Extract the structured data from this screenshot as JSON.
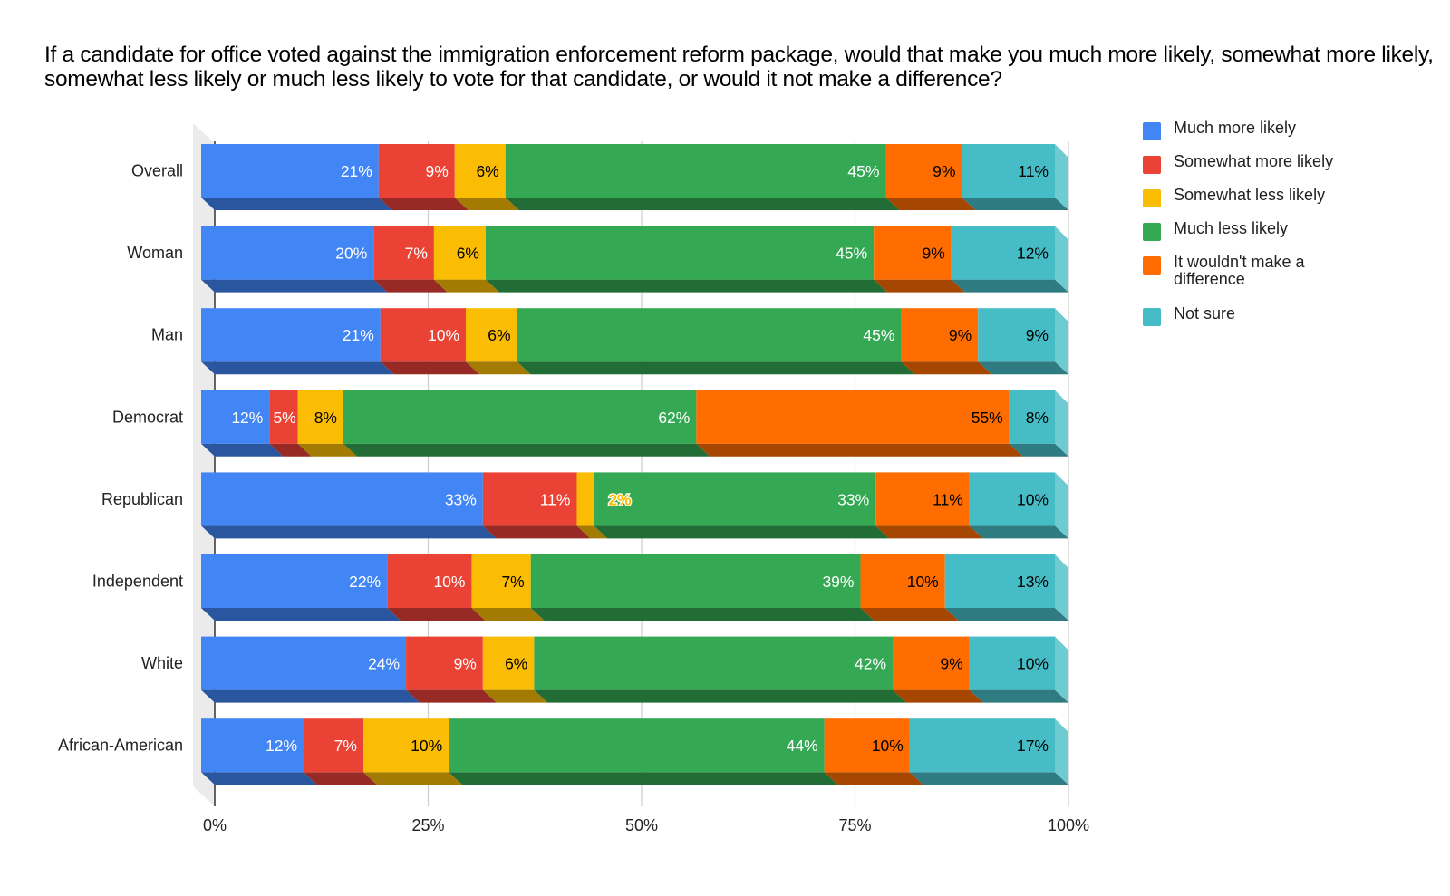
{
  "chart_data": {
    "type": "bar",
    "orientation": "horizontal",
    "stacked": "percent",
    "three_d": true,
    "title": "If a candidate for office voted against the immigration enforcement reform package, would that make you much more likely, somewhat more likely, somewhat less likely or much less likely to vote for that candidate, or would it not make a difference?",
    "xlabel": "",
    "ylabel": "",
    "xlim": [
      0,
      100
    ],
    "x_ticks": [
      "0%",
      "25%",
      "50%",
      "75%",
      "100%"
    ],
    "grid": true,
    "legend_position": "right",
    "categories": [
      "Overall",
      "Woman",
      "Man",
      "Democrat",
      "Republican",
      "Independent",
      "White",
      "African-American"
    ],
    "series": [
      {
        "name": "Much more likely",
        "color": "#4285f4",
        "side_color": "#2a56a0",
        "label_color": "#ffffff",
        "values": [
          21,
          20,
          21,
          12,
          33,
          22,
          24,
          12
        ]
      },
      {
        "name": "Somewhat more likely",
        "color": "#ea4335",
        "side_color": "#972a24",
        "label_color": "#ffffff",
        "values": [
          9,
          7,
          10,
          5,
          11,
          10,
          9,
          7
        ]
      },
      {
        "name": "Somewhat less likely",
        "color": "#fbbc04",
        "side_color": "#a37a02",
        "label_color": "#000000",
        "values": [
          6,
          6,
          6,
          8,
          2,
          7,
          6,
          10
        ]
      },
      {
        "name": "Much less likely",
        "color": "#34a853",
        "side_color": "#226d36",
        "label_color": "#ffffff",
        "values": [
          45,
          45,
          45,
          62,
          33,
          39,
          42,
          44
        ]
      },
      {
        "name": "It wouldn't make a difference",
        "color": "#ff6d01",
        "side_color": "#a64701",
        "label_color": "#000000",
        "values": [
          9,
          9,
          9,
          55,
          11,
          10,
          9,
          10
        ]
      },
      {
        "name": "Not sure",
        "color": "#46bdc6",
        "side_color": "#2e7b81",
        "label_color": "#000000",
        "values": [
          11,
          12,
          9,
          8,
          10,
          13,
          10,
          17
        ]
      }
    ],
    "value_labels": [
      [
        "21%",
        "9%",
        "6%",
        "45%",
        "9%",
        "11%"
      ],
      [
        "20%",
        "7%",
        "6%",
        "45%",
        "9%",
        "12%"
      ],
      [
        "21%",
        "10%",
        "6%",
        "45%",
        "9%",
        "9%"
      ],
      [
        "12%",
        "5%",
        "8%",
        "62%",
        "55%",
        "8%"
      ],
      [
        "33%",
        "11%",
        "2%",
        "33%",
        "11%",
        "10%"
      ],
      [
        "22%",
        "10%",
        "7%",
        "39%",
        "10%",
        "13%"
      ],
      [
        "24%",
        "9%",
        "6%",
        "42%",
        "9%",
        "10%"
      ],
      [
        "12%",
        "7%",
        "10%",
        "44%",
        "10%",
        "17%"
      ]
    ]
  }
}
